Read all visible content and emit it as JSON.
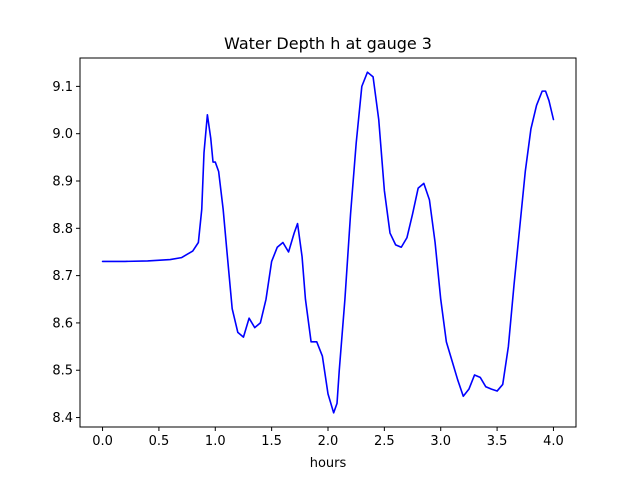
{
  "chart_data": {
    "type": "line",
    "title": "Water Depth h at gauge 3",
    "xlabel": "hours",
    "ylabel": "",
    "xlim": [
      -0.2,
      4.2
    ],
    "ylim": [
      8.38,
      9.16
    ],
    "xticks": [
      0.0,
      0.5,
      1.0,
      1.5,
      2.0,
      2.5,
      3.0,
      3.5,
      4.0
    ],
    "yticks": [
      8.4,
      8.5,
      8.6,
      8.7,
      8.8,
      8.9,
      9.0,
      9.1
    ],
    "xtick_labels": [
      "0.0",
      "0.5",
      "1.0",
      "1.5",
      "2.0",
      "2.5",
      "3.0",
      "3.5",
      "4.0"
    ],
    "ytick_labels": [
      "8.4",
      "8.5",
      "8.6",
      "8.7",
      "8.8",
      "8.9",
      "9.0",
      "9.1"
    ],
    "grid": false,
    "series": [
      {
        "color": "#0000ff",
        "x": [
          0.0,
          0.2,
          0.4,
          0.6,
          0.7,
          0.8,
          0.85,
          0.88,
          0.9,
          0.93,
          0.96,
          0.98,
          1.0,
          1.03,
          1.07,
          1.1,
          1.15,
          1.2,
          1.25,
          1.3,
          1.35,
          1.4,
          1.45,
          1.5,
          1.55,
          1.6,
          1.65,
          1.7,
          1.73,
          1.77,
          1.8,
          1.85,
          1.9,
          1.95,
          2.0,
          2.05,
          2.08,
          2.1,
          2.15,
          2.2,
          2.25,
          2.3,
          2.35,
          2.4,
          2.45,
          2.5,
          2.55,
          2.6,
          2.65,
          2.7,
          2.75,
          2.8,
          2.85,
          2.9,
          2.95,
          3.0,
          3.05,
          3.1,
          3.15,
          3.2,
          3.25,
          3.3,
          3.35,
          3.4,
          3.45,
          3.5,
          3.55,
          3.6,
          3.65,
          3.7,
          3.75,
          3.8,
          3.85,
          3.9,
          3.93,
          3.96,
          4.0
        ],
        "y": [
          8.73,
          8.73,
          8.731,
          8.734,
          8.738,
          8.752,
          8.77,
          8.84,
          8.96,
          9.04,
          8.99,
          8.94,
          8.94,
          8.92,
          8.84,
          8.76,
          8.63,
          8.58,
          8.57,
          8.61,
          8.59,
          8.6,
          8.65,
          8.73,
          8.76,
          8.77,
          8.75,
          8.79,
          8.81,
          8.74,
          8.65,
          8.56,
          8.56,
          8.53,
          8.45,
          8.41,
          8.43,
          8.5,
          8.65,
          8.83,
          8.98,
          9.1,
          9.13,
          9.12,
          9.03,
          8.88,
          8.79,
          8.765,
          8.76,
          8.78,
          8.83,
          8.885,
          8.895,
          8.86,
          8.77,
          8.65,
          8.56,
          8.52,
          8.48,
          8.445,
          8.46,
          8.49,
          8.485,
          8.465,
          8.46,
          8.456,
          8.47,
          8.55,
          8.68,
          8.8,
          8.92,
          9.01,
          9.06,
          9.09,
          9.09,
          9.07,
          9.03
        ]
      }
    ]
  }
}
